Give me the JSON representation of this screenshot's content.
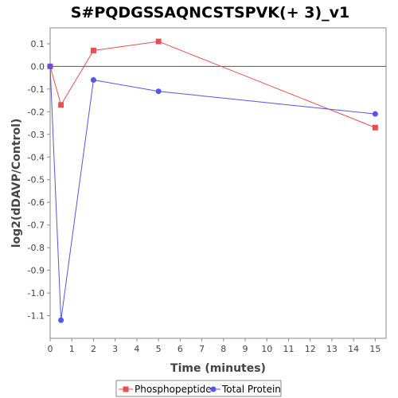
{
  "chart_data": {
    "type": "line",
    "title": "S#PQDGSSAQNCSTSPVK(+ 3)_v1",
    "xlabel": "Time (minutes)",
    "ylabel": "log2(dDAVP/Control)",
    "xlim": [
      0,
      15.5
    ],
    "ylim": [
      -1.2,
      0.17
    ],
    "xticks": [
      0,
      1,
      2,
      3,
      4,
      5,
      6,
      7,
      8,
      9,
      10,
      11,
      12,
      13,
      14,
      15
    ],
    "yticks": [
      0.1,
      0.0,
      -0.1,
      -0.2,
      -0.3,
      -0.4,
      -0.5,
      -0.6,
      -0.7,
      -0.8,
      -0.9,
      -1.0,
      -1.1
    ],
    "ytick_labels": [
      "0.1",
      "0.0",
      "-0.1",
      "-0.2",
      "-0.3",
      "-0.4",
      "-0.5",
      "-0.6",
      "-0.7",
      "-0.8",
      "-0.9",
      "-1.0",
      "-1.1"
    ],
    "zero_line": true,
    "grid": false,
    "legend_position": "bottom",
    "series": [
      {
        "name": "Phosphopeptide",
        "color": "#e8504f",
        "marker": "square",
        "x": [
          0,
          0.5,
          2,
          5,
          15
        ],
        "y": [
          0.0,
          -0.17,
          0.07,
          0.11,
          -0.27
        ]
      },
      {
        "name": "Total Protein",
        "color": "#5555e6",
        "marker": "circle",
        "x": [
          0,
          0.5,
          2,
          5,
          15
        ],
        "y": [
          0.0,
          -1.12,
          -0.06,
          -0.11,
          -0.21
        ]
      }
    ]
  }
}
